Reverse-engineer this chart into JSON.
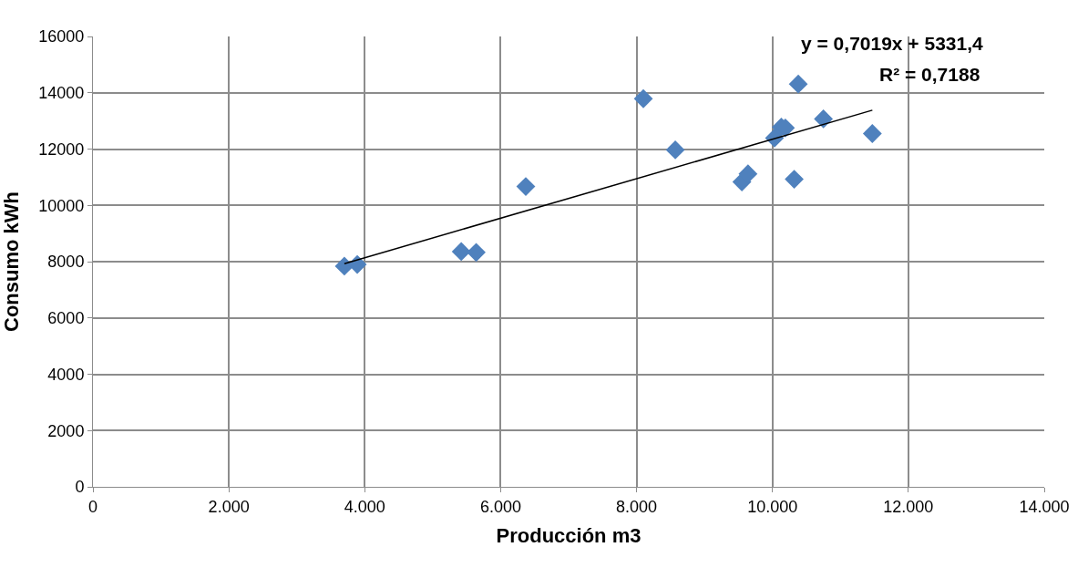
{
  "chart_data": {
    "type": "scatter",
    "xlabel": "Producción m3",
    "ylabel": "Consumo kWh",
    "xlim": [
      0,
      14000
    ],
    "ylim": [
      0,
      16000
    ],
    "xticks": [
      0,
      {
        "value": 2000,
        "label": "2.000"
      },
      {
        "value": 4000,
        "label": "4.000"
      },
      {
        "value": 6000,
        "label": "6.000"
      },
      {
        "value": 8000,
        "label": "8.000"
      },
      {
        "value": 10000,
        "label": "10.000"
      },
      {
        "value": 12000,
        "label": "12.000"
      },
      {
        "value": 14000,
        "label": "14.000"
      }
    ],
    "yticks": [
      0,
      2000,
      4000,
      6000,
      8000,
      10000,
      12000,
      14000,
      16000
    ],
    "grid": true,
    "marker": "diamond",
    "series": [
      {
        "color": "#4f81bd",
        "x": [
          3700,
          3890,
          5420,
          5640,
          6370,
          8100,
          8570,
          9550,
          9640,
          10320,
          10030,
          10130,
          10190,
          10750,
          11470,
          10380
        ],
        "values": [
          7840,
          7900,
          8360,
          8330,
          10670,
          13790,
          11970,
          10830,
          11120,
          10930,
          12390,
          12780,
          12750,
          13070,
          12550,
          14310
        ]
      },
      {
        "type": "line",
        "color": "#000000",
        "marker": "none",
        "x": [
          3700,
          11470
        ],
        "values": [
          7930,
          13380
        ]
      }
    ],
    "annotations": [
      "y = 0,7019x + 5331,4",
      "R² = 0,7188"
    ]
  }
}
